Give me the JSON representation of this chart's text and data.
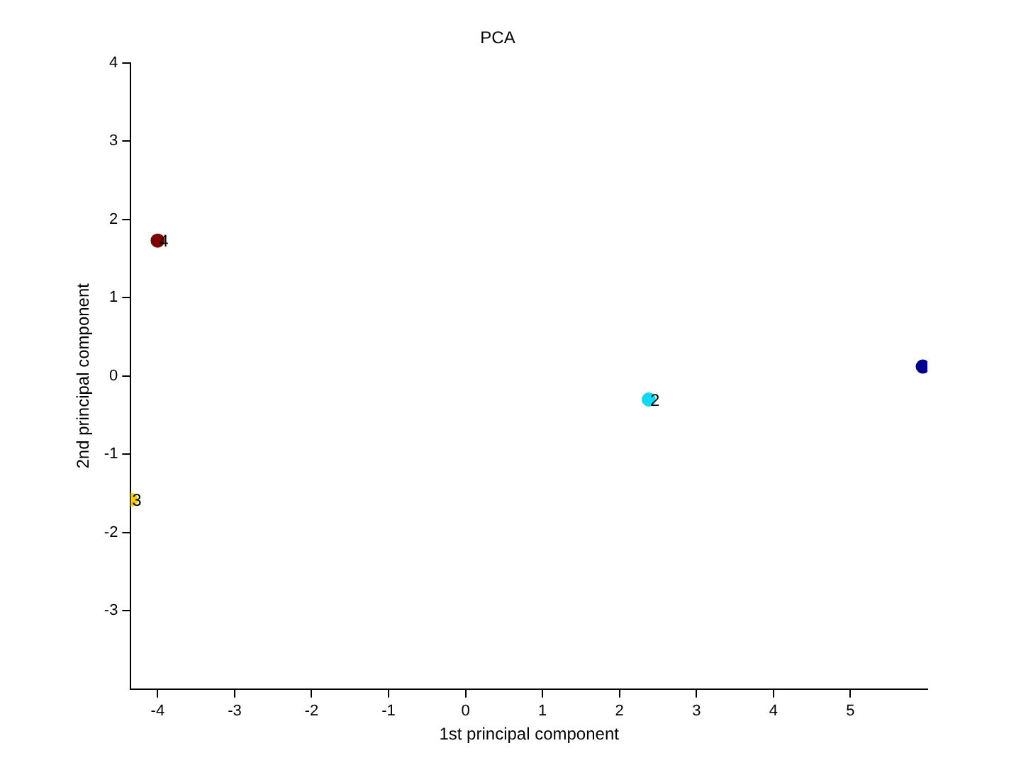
{
  "chart_data": {
    "type": "scatter",
    "title": "PCA",
    "xlabel": "1st principal component",
    "ylabel": "2nd principal component",
    "x": [
      5.94,
      2.38,
      -4.35,
      -4.0
    ],
    "values": [
      0.12,
      -0.3,
      -1.58,
      1.73
    ],
    "colors": [
      "#00008f",
      "#10d8f8",
      "#f8d000",
      "#800000"
    ],
    "marker": "circle",
    "xlim": [
      -4.35,
      6.0
    ],
    "xticks": [
      -4,
      -3,
      -2,
      -1,
      0,
      1,
      2,
      3,
      4,
      5
    ],
    "ylim": [
      -4,
      4
    ],
    "yticks": [
      -3,
      -2,
      -1,
      0,
      1,
      2,
      3,
      4
    ],
    "annotations": [
      {
        "text": "2",
        "x": 2.38,
        "y": -0.3
      },
      {
        "text": "3",
        "x": -4.35,
        "y": -1.58
      },
      {
        "text": "4",
        "x": -4.0,
        "y": 1.73
      }
    ],
    "grid": false,
    "legend": false
  }
}
